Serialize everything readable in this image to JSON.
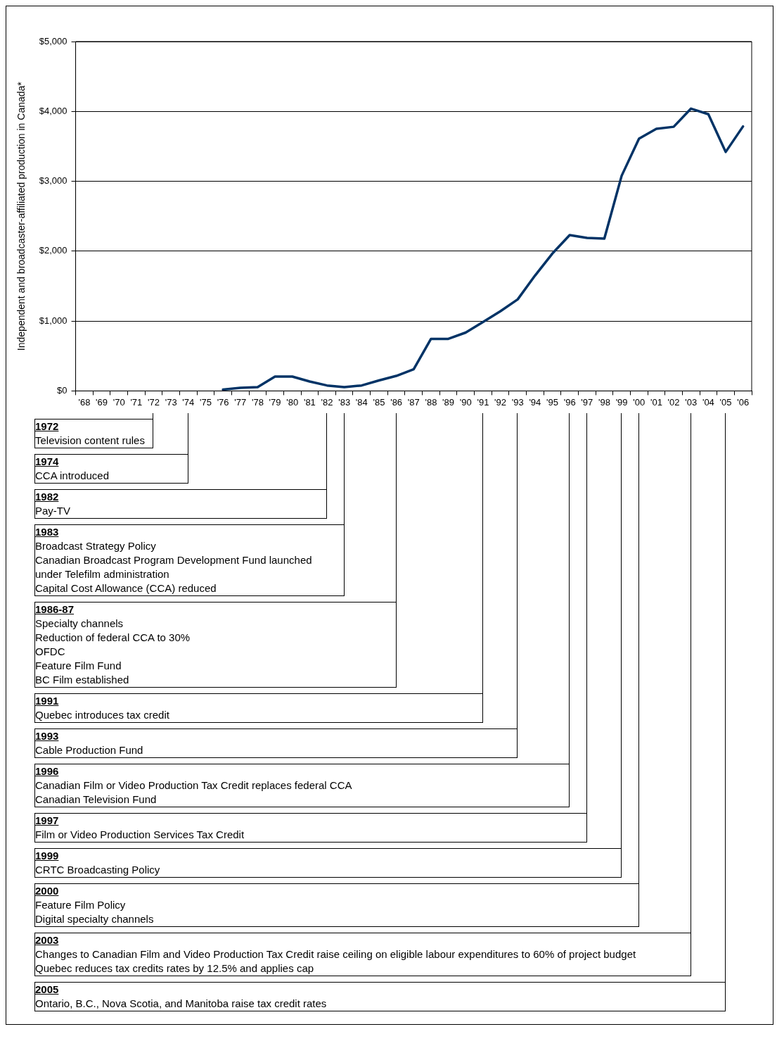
{
  "chart_data": {
    "type": "line",
    "ylabel": "Independent and broadcaster-affiliated production in Canada*",
    "categories": [
      "'68",
      "'69",
      "'70",
      "'71",
      "'72",
      "'73",
      "'74",
      "'75",
      "'76",
      "'77",
      "'78",
      "'79",
      "'80",
      "'81",
      "'82",
      "'83",
      "'84",
      "'85",
      "'86",
      "'87",
      "'88",
      "'89",
      "'90",
      "'91",
      "'92",
      "'93",
      "'94",
      "'95",
      "'96",
      "'97",
      "'98",
      "'99",
      "'00",
      "'01",
      "'02",
      "'03",
      "'04",
      "'05",
      "'06"
    ],
    "series": [
      {
        "color": "#003366",
        "values": [
          null,
          null,
          null,
          null,
          null,
          null,
          null,
          null,
          20,
          45,
          55,
          205,
          205,
          135,
          78,
          55,
          78,
          150,
          215,
          310,
          745,
          745,
          835,
          985,
          1140,
          1310,
          1650,
          1965,
          2230,
          2190,
          2180,
          3080,
          3610,
          3750,
          3780,
          4040,
          3960,
          3420,
          3785
        ]
      }
    ],
    "ylim": [
      0,
      5000
    ],
    "yticks": [
      {
        "value": 0,
        "label": "$0"
      },
      {
        "value": 1000,
        "label": "$1,000"
      },
      {
        "value": 2000,
        "label": "$2,000"
      },
      {
        "value": 3000,
        "label": "$3,000"
      },
      {
        "value": 4000,
        "label": "$4,000"
      },
      {
        "value": 5000,
        "label": "$5,000"
      }
    ],
    "grid": "y",
    "legend": false,
    "marker": "none",
    "line_style": "solid",
    "annotations": [
      "1972\nTelevision content rules",
      "1974\nCCA introduced",
      "1982\nPay-TV",
      "1983\nBroadcast Strategy Policy\nCanadian Broadcast Program Development Fund launched\nunder Telefilm administration\nCapital Cost Allowance (CCA) reduced",
      "1986-87\nSpecialty channels\nReduction of federal CCA to 30%\nOFDC\nFeature Film Fund\nBC Film established",
      "1991\nQuebec introduces tax credit",
      "1993\nCable Production Fund",
      "1996\nCanadian Film or Video Production Tax Credit replaces federal CCA\nCanadian Television Fund",
      "1997\nFilm or Video Production Services Tax Credit",
      "1999\nCRTC Broadcasting Policy",
      "2000\nFeature Film Policy\nDigital specialty channels",
      "2003\nChanges to Canadian Film and Video Production Tax Credit raise ceiling on eligible labour expenditures to 60% of project budget\nQuebec reduces tax credits rates by 12.5% and applies cap",
      "2005\nOntario, B.C., Nova Scotia, and Manitoba raise tax credit rates"
    ]
  }
}
